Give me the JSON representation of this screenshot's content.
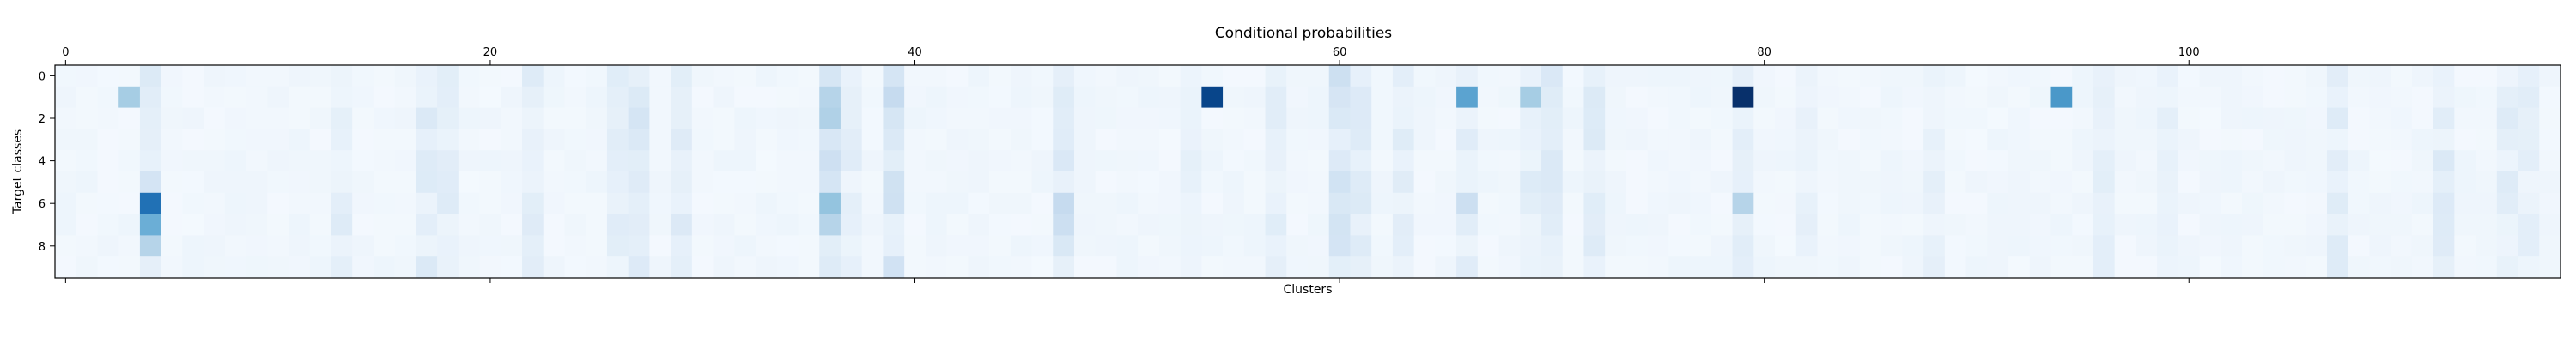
{
  "chart_data": {
    "type": "heatmap",
    "title": "Conditional probabilities",
    "xlabel": "Clusters",
    "ylabel": "Target classes",
    "n_cols": 118,
    "n_rows": 10,
    "x_ticks": [
      0,
      20,
      40,
      60,
      80,
      100
    ],
    "y_ticks": [
      0,
      2,
      4,
      6,
      8
    ],
    "x_tick_labels": [
      "0",
      "20",
      "40",
      "60",
      "80",
      "100"
    ],
    "y_tick_labels": [
      "0",
      "2",
      "4",
      "6",
      "8"
    ],
    "colormap": "Blues",
    "value_range": [
      0,
      1
    ],
    "grid": false,
    "highlight_cells": [
      {
        "row": 1,
        "col": 3,
        "value": 0.35
      },
      {
        "row": 1,
        "col": 36,
        "value": 0.3
      },
      {
        "row": 1,
        "col": 39,
        "value": 0.25
      },
      {
        "row": 1,
        "col": 54,
        "value": 0.92
      },
      {
        "row": 1,
        "col": 66,
        "value": 0.55
      },
      {
        "row": 1,
        "col": 69,
        "value": 0.35
      },
      {
        "row": 1,
        "col": 79,
        "value": 1.0
      },
      {
        "row": 1,
        "col": 94,
        "value": 0.6
      },
      {
        "row": 2,
        "col": 36,
        "value": 0.32
      },
      {
        "row": 6,
        "col": 4,
        "value": 0.75
      },
      {
        "row": 7,
        "col": 4,
        "value": 0.5
      },
      {
        "row": 8,
        "col": 4,
        "value": 0.3
      },
      {
        "row": 6,
        "col": 36,
        "value": 0.4
      },
      {
        "row": 7,
        "col": 36,
        "value": 0.3
      },
      {
        "row": 6,
        "col": 79,
        "value": 0.3
      },
      {
        "row": 6,
        "col": 66,
        "value": 0.22
      },
      {
        "row": 6,
        "col": 47,
        "value": 0.25
      },
      {
        "row": 7,
        "col": 47,
        "value": 0.22
      }
    ],
    "hot_columns": [
      {
        "col": 4,
        "value": 0.14
      },
      {
        "col": 13,
        "value": 0.09
      },
      {
        "col": 17,
        "value": 0.1
      },
      {
        "col": 18,
        "value": 0.1
      },
      {
        "col": 22,
        "value": 0.09
      },
      {
        "col": 26,
        "value": 0.08
      },
      {
        "col": 27,
        "value": 0.12
      },
      {
        "col": 29,
        "value": 0.1
      },
      {
        "col": 36,
        "value": 0.16
      },
      {
        "col": 37,
        "value": 0.08
      },
      {
        "col": 39,
        "value": 0.14
      },
      {
        "col": 47,
        "value": 0.12
      },
      {
        "col": 53,
        "value": 0.07
      },
      {
        "col": 57,
        "value": 0.08
      },
      {
        "col": 60,
        "value": 0.15
      },
      {
        "col": 61,
        "value": 0.1
      },
      {
        "col": 63,
        "value": 0.1
      },
      {
        "col": 66,
        "value": 0.08
      },
      {
        "col": 69,
        "value": 0.09
      },
      {
        "col": 70,
        "value": 0.12
      },
      {
        "col": 72,
        "value": 0.1
      },
      {
        "col": 79,
        "value": 0.08
      },
      {
        "col": 82,
        "value": 0.07
      },
      {
        "col": 88,
        "value": 0.08
      },
      {
        "col": 96,
        "value": 0.08
      },
      {
        "col": 99,
        "value": 0.07
      },
      {
        "col": 107,
        "value": 0.09
      },
      {
        "col": 112,
        "value": 0.1
      },
      {
        "col": 115,
        "value": 0.09
      },
      {
        "col": 116,
        "value": 0.08
      }
    ],
    "background_value": 0.035
  }
}
